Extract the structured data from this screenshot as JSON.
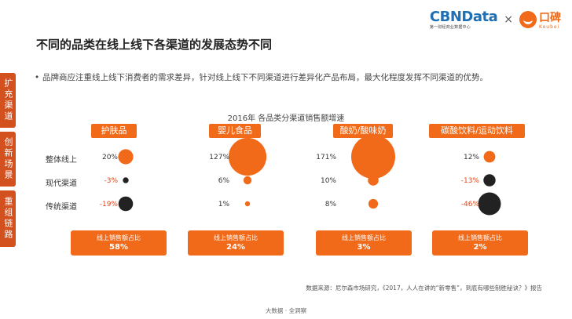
{
  "header": {
    "title": "不同的品类在线上线下各渠道的发展态势不同",
    "logo_cbn": "CBNData",
    "logo_cbn_sub": "第一财经商业数据中心",
    "logo_times": "×",
    "logo_koubei": "口碑",
    "logo_koubei_sub": "Koubei"
  },
  "side_tabs": [
    "扩充渠道",
    "创新场景",
    "重组链路"
  ],
  "bullet": "品牌商应注重线上线下消费者的需求差异，针对线上线下不同渠道进行差异化产品布局，最大化程度发挥不同渠道的优势。",
  "chart_data": {
    "type": "bubble",
    "title": "2016年 各品类分渠道销售额增速",
    "categories": [
      "护肤品",
      "婴儿食品",
      "酸奶/酸味奶",
      "碳酸饮料/运动饮料"
    ],
    "rows": [
      "整体线上",
      "现代渠道",
      "传统渠道"
    ],
    "values": [
      [
        20,
        -3,
        -19
      ],
      [
        127,
        6,
        1
      ],
      [
        171,
        10,
        8
      ],
      [
        12,
        -13,
        -46
      ]
    ],
    "value_labels": [
      [
        "20%",
        "-3%",
        "-19%"
      ],
      [
        "127%",
        "6%",
        "1%"
      ],
      [
        "171%",
        "10%",
        "8%"
      ],
      [
        "12%",
        "-13%",
        "-46%"
      ]
    ],
    "share_label": "线上销售额占比",
    "online_share": [
      "58%",
      "24%",
      "3%",
      "2%"
    ],
    "colors": {
      "positive": "#f06a1a",
      "negative": "#222222"
    }
  },
  "source": "数据来源：尼尔森市场研究，《2017，人人在讲的“新零售”，到底有哪些制胜秘诀？》报告",
  "footer": "大数据 · 全洞察"
}
